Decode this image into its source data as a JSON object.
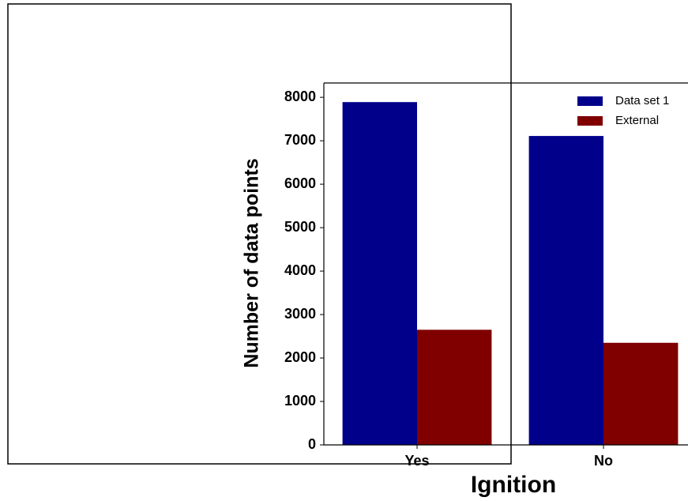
{
  "chart_data": {
    "type": "bar",
    "x_label": "Ignition",
    "y_label": "Number of data points",
    "categories": [
      "Yes",
      "No"
    ],
    "series": [
      {
        "name": "Data set 1",
        "color": "#00008b",
        "values": [
          7890,
          7110
        ]
      },
      {
        "name": "External",
        "color": "#800000",
        "values": [
          2650,
          2350
        ]
      }
    ],
    "ylim": [
      0,
      8330
    ],
    "yticks": [
      0,
      1000,
      2000,
      3000,
      4000,
      5000,
      6000,
      7000,
      8000
    ],
    "legend": "upper right"
  }
}
